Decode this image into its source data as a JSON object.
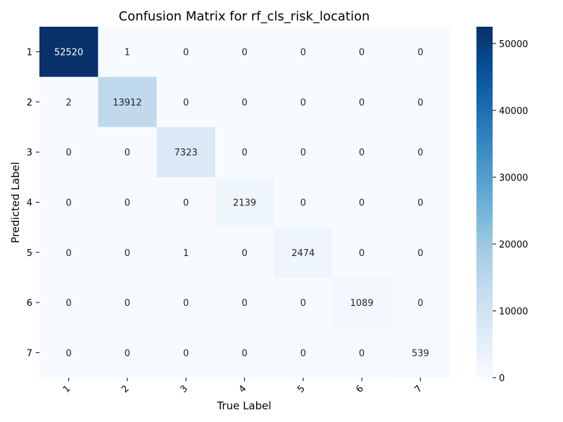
{
  "chart_data": {
    "type": "heatmap",
    "title": "Confusion Matrix for rf_cls_risk_location",
    "xlabel": "True Label",
    "ylabel": "Predicted Label",
    "x_categories": [
      "1",
      "2",
      "3",
      "4",
      "5",
      "6",
      "7"
    ],
    "y_categories": [
      "1",
      "2",
      "3",
      "4",
      "5",
      "6",
      "7"
    ],
    "values": [
      [
        52520,
        1,
        0,
        0,
        0,
        0,
        0
      ],
      [
        2,
        13912,
        0,
        0,
        0,
        0,
        0
      ],
      [
        0,
        0,
        7323,
        0,
        0,
        0,
        0
      ],
      [
        0,
        0,
        0,
        2139,
        0,
        0,
        0
      ],
      [
        0,
        0,
        1,
        0,
        2474,
        0,
        0
      ],
      [
        0,
        0,
        0,
        0,
        0,
        1089,
        0
      ],
      [
        0,
        0,
        0,
        0,
        0,
        0,
        539
      ]
    ],
    "colorscale": "Blues",
    "colorbar": {
      "min": 0,
      "max": 52520,
      "ticks": [
        0,
        10000,
        20000,
        30000,
        40000,
        50000
      ],
      "tick_labels": [
        "0",
        "10000",
        "20000",
        "30000",
        "40000",
        "50000"
      ]
    },
    "grid": false,
    "legend": "colorbar-right"
  }
}
